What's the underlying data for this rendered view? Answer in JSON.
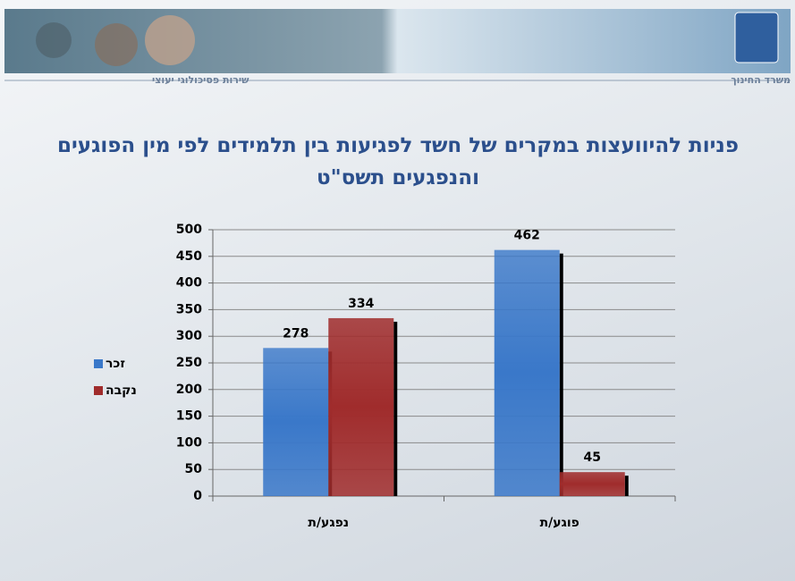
{
  "header": {
    "left": "שירות פסיכולוגי יעוצי",
    "right": "משרד החינוך"
  },
  "chart_data": {
    "type": "bar",
    "title": "פניות להיוועצות במקרים של חשד לפגיעות בין תלמידים לפי מין הפוגעים והנפגעים תשס\"ט",
    "categories": [
      "נפגע/ת",
      "פוגע/ת"
    ],
    "series": [
      {
        "name": "זכר",
        "color": "#3a78c9",
        "values": [
          278,
          462
        ]
      },
      {
        "name": "נקבה",
        "color": "#a02c2c",
        "values": [
          334,
          45
        ]
      }
    ],
    "ylim": [
      0,
      500
    ],
    "yticks": [
      0,
      50,
      100,
      150,
      200,
      250,
      300,
      350,
      400,
      450,
      500
    ],
    "grid": true
  }
}
